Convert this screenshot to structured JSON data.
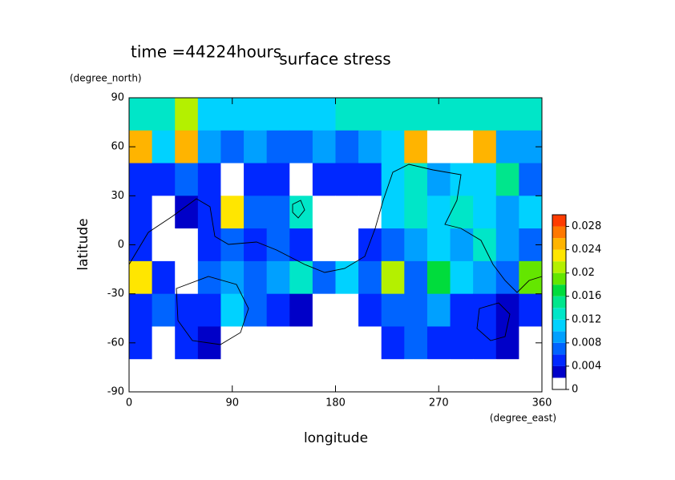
{
  "chart_data": {
    "type": "contour",
    "title": "surface stress",
    "subtitle": "time =44224hours",
    "x_label": "longitude",
    "x_unit": "(degree_east)",
    "y_label": "latitude",
    "y_unit": "(degree_north)",
    "x": [
      10,
      30,
      50,
      70,
      90,
      110,
      130,
      150,
      170,
      190,
      210,
      230,
      250,
      270,
      290,
      310,
      330,
      350
    ],
    "y": [
      80,
      60,
      40,
      20,
      0,
      -20,
      -40,
      -60,
      -80
    ],
    "z": [
      [
        0.012,
        0.012,
        0.02,
        0.01,
        0.01,
        0.01,
        0.01,
        0.01,
        0.01,
        0.012,
        0.012,
        0.012,
        0.012,
        0.012,
        0.012,
        0.012,
        0.012,
        0.012
      ],
      [
        0.024,
        0.01,
        0.024,
        0.008,
        0.006,
        0.008,
        0.006,
        0.006,
        0.008,
        0.006,
        0.008,
        0.01,
        0.024,
        0,
        0,
        0.024,
        0.008,
        0.008
      ],
      [
        0.004,
        0.004,
        0.006,
        0.004,
        0,
        0.004,
        0.004,
        0,
        0.004,
        0.004,
        0.004,
        0.01,
        0.012,
        0.008,
        0.01,
        0.01,
        0.014,
        0.006
      ],
      [
        0.004,
        0,
        0.002,
        0.004,
        0.022,
        0.006,
        0.006,
        0.012,
        0,
        0,
        0,
        0.01,
        0.012,
        0.01,
        0.012,
        0.01,
        0.008,
        0.01
      ],
      [
        0.004,
        0,
        0,
        0.004,
        0.006,
        0.004,
        0.006,
        0.004,
        0,
        0,
        0.004,
        0.006,
        0.008,
        0.01,
        0.008,
        0.012,
        0.008,
        0.006
      ],
      [
        0.022,
        0.004,
        0,
        0.006,
        0.008,
        0.006,
        0.008,
        0.012,
        0.006,
        0.01,
        0.006,
        0.02,
        0.006,
        0.016,
        0.01,
        0.008,
        0.006,
        0.018
      ],
      [
        0.004,
        0.006,
        0.004,
        0.004,
        0.01,
        0.006,
        0.004,
        0.002,
        0,
        0,
        0.004,
        0.006,
        0.006,
        0.008,
        0.004,
        0.004,
        0.002,
        0.004
      ],
      [
        0.004,
        0,
        0.004,
        0.002,
        0,
        0,
        0,
        0,
        0,
        0,
        0,
        0.004,
        0.006,
        0.004,
        0.004,
        0.004,
        0.002,
        0
      ],
      [
        0,
        0,
        0,
        0,
        0,
        0,
        0,
        0,
        0,
        0,
        0,
        0,
        0,
        0,
        0,
        0,
        0,
        0
      ]
    ],
    "xlim": [
      0,
      360
    ],
    "xticks": [
      0,
      90,
      180,
      270,
      360
    ],
    "ylim": [
      -90,
      90
    ],
    "yticks": [
      -90,
      -60,
      -30,
      0,
      30,
      60,
      90
    ],
    "zlim": [
      0,
      0.03
    ],
    "levels": [
      0,
      0.002,
      0.004,
      0.006,
      0.008,
      0.01,
      0.012,
      0.014,
      0.016,
      0.018,
      0.02,
      0.022,
      0.024,
      0.026,
      0.028,
      0.03
    ],
    "colors": [
      "#ffffff",
      "#0000c8",
      "#0028ff",
      "#0064ff",
      "#00a0ff",
      "#00d2ff",
      "#00e6c8",
      "#00e68c",
      "#00dc3c",
      "#64e600",
      "#b4f000",
      "#ffe600",
      "#ffb400",
      "#ff7800",
      "#ff3c00"
    ],
    "zticks": [
      0,
      0.004,
      0.008,
      0.012,
      0.016,
      0.02,
      0.024,
      0.028
    ]
  }
}
